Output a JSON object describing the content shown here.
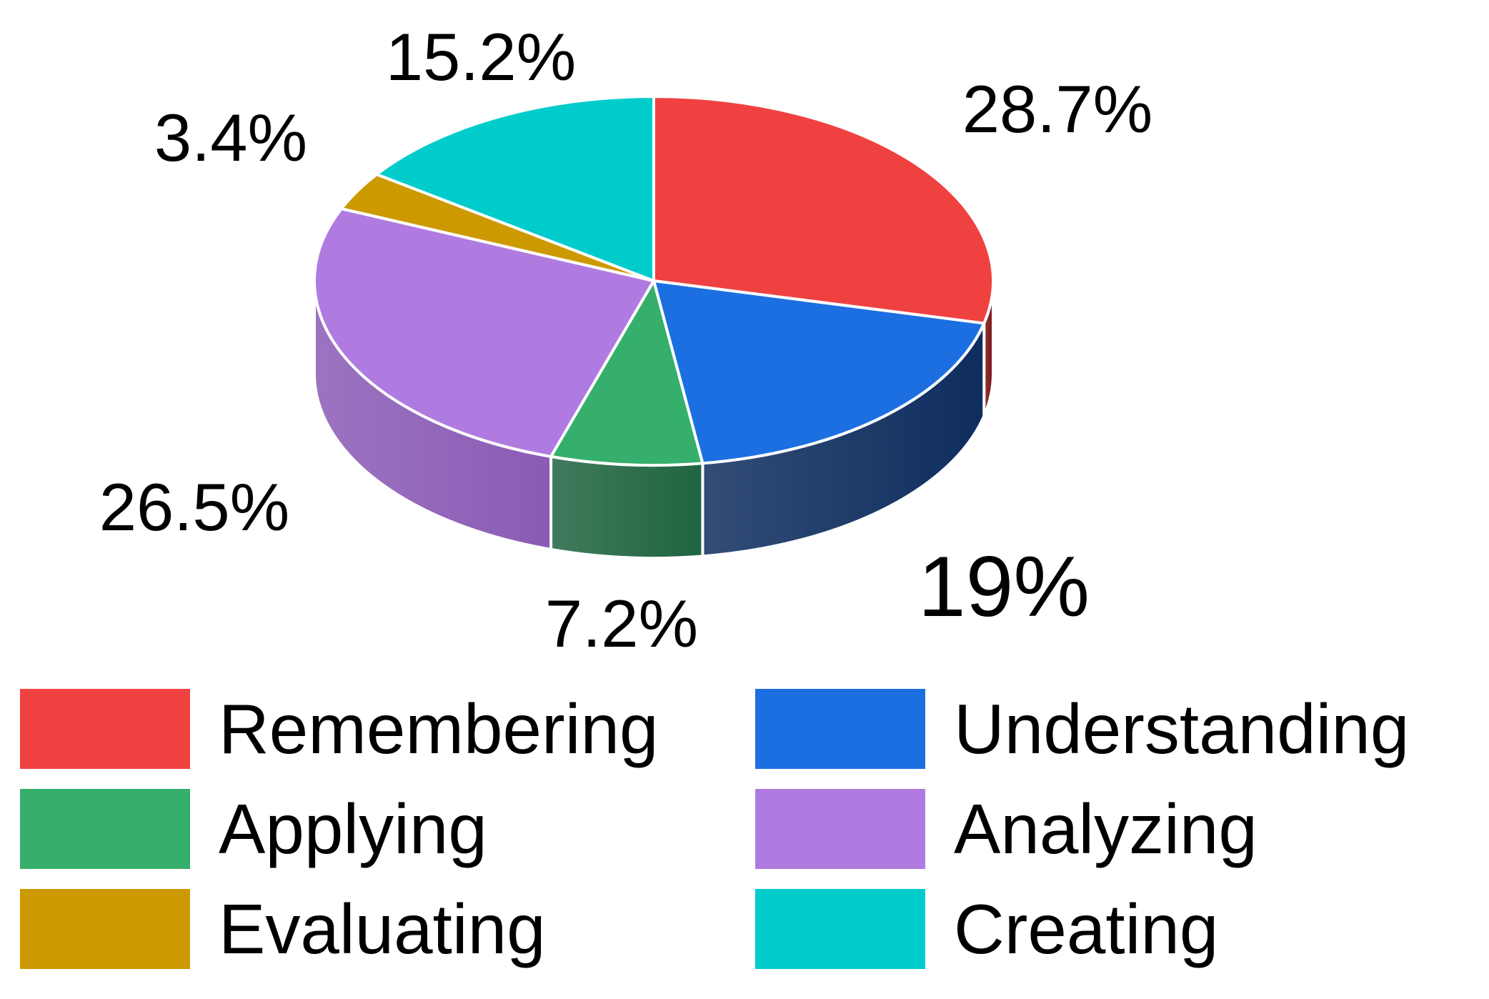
{
  "chart_data": {
    "type": "pie",
    "title": "",
    "style": "3d-exploded-free",
    "start": "top-clockwise",
    "slices": [
      {
        "category": "Remembering",
        "value": 28.7,
        "label": "28.7%",
        "color": "#F04141",
        "side_color": "#7a1414"
      },
      {
        "category": "Understanding",
        "value": 19,
        "label": "19%",
        "color": "#1C6FE1",
        "side_color": "#0E2D5E"
      },
      {
        "category": "Applying",
        "value": 7.2,
        "label": "7.2%",
        "color": "#35AF6B",
        "side_color": "#1F6440"
      },
      {
        "category": "Analyzing",
        "value": 26.5,
        "label": "26.5%",
        "color": "#B07BE0",
        "side_color": "#8A5BB5"
      },
      {
        "category": "Evaluating",
        "value": 3.4,
        "label": "3.4%",
        "color": "#CC9A00",
        "side_color": "#8a6800"
      },
      {
        "category": "Creating",
        "value": 15.2,
        "label": "15.2%",
        "color": "#00CCCC",
        "side_color": "#008a8a"
      }
    ],
    "legend": {
      "placement": "bottom",
      "columns": 2
    }
  }
}
